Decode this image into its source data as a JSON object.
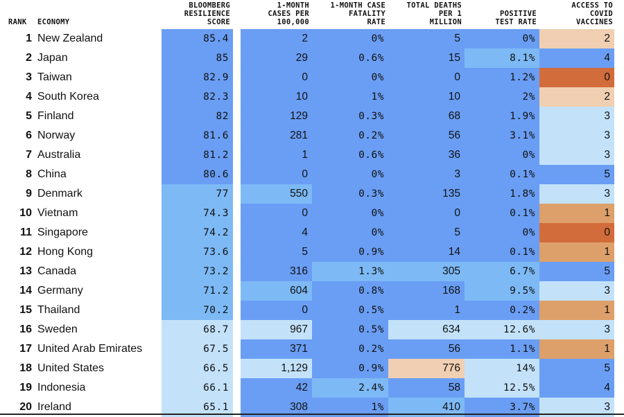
{
  "colors": {
    "blue_dark": "#6a9ef4",
    "blue_mid": "#7db9f5",
    "blue_light": "#c3e2fa",
    "peach_light": "#f0cfb2",
    "orange_mid": "#dea06b",
    "orange_dark": "#d26c3b"
  },
  "header": {
    "rank": "RANK",
    "economy": "ECONOMY",
    "score": "BLOOMBERG\nRESILIENCE\nSCORE",
    "cases": "1-MONTH\nCASES PER\n100,000",
    "cfr": "1-MONTH CASE\nFATALITY\nRATE",
    "deaths": "TOTAL DEATHS\nPER 1\nMILLION",
    "positive": "POSITIVE\nTEST RATE",
    "vaccines": "ACCESS TO\nCOVID\nVACCINES"
  },
  "chart_data": {
    "type": "table",
    "columns": [
      "Rank",
      "Economy",
      "Bloomberg Resilience Score",
      "1-Month Cases Per 100,000",
      "1-Month Case Fatality Rate",
      "Total Deaths Per 1 Million",
      "Positive Test Rate",
      "Access to Covid Vaccines"
    ],
    "rows": [
      {
        "rank": "1",
        "economy": "New Zealand",
        "score": "85.4",
        "cases": "2",
        "cfr": "0%",
        "deaths": "5",
        "positive": "0%",
        "vaccines": "2",
        "colors": {
          "score": "blue_dark",
          "cases": "blue_dark",
          "cfr": "blue_dark",
          "deaths": "blue_dark",
          "positive": "blue_dark",
          "vaccines": "peach_light"
        }
      },
      {
        "rank": "2",
        "economy": "Japan",
        "score": "85",
        "cases": "29",
        "cfr": "0.6%",
        "deaths": "15",
        "positive": "8.1%",
        "vaccines": "4",
        "colors": {
          "score": "blue_dark",
          "cases": "blue_dark",
          "cfr": "blue_dark",
          "deaths": "blue_dark",
          "positive": "blue_mid",
          "vaccines": "blue_dark"
        }
      },
      {
        "rank": "3",
        "economy": "Taiwan",
        "score": "82.9",
        "cases": "0",
        "cfr": "0%",
        "deaths": "0",
        "positive": "1.2%",
        "vaccines": "0",
        "colors": {
          "score": "blue_dark",
          "cases": "blue_dark",
          "cfr": "blue_dark",
          "deaths": "blue_dark",
          "positive": "blue_dark",
          "vaccines": "orange_dark"
        }
      },
      {
        "rank": "4",
        "economy": "South Korea",
        "score": "82.3",
        "cases": "10",
        "cfr": "1%",
        "deaths": "10",
        "positive": "2%",
        "vaccines": "2",
        "colors": {
          "score": "blue_dark",
          "cases": "blue_dark",
          "cfr": "blue_dark",
          "deaths": "blue_dark",
          "positive": "blue_dark",
          "vaccines": "peach_light"
        }
      },
      {
        "rank": "5",
        "economy": "Finland",
        "score": "82",
        "cases": "129",
        "cfr": "0.3%",
        "deaths": "68",
        "positive": "1.9%",
        "vaccines": "3",
        "colors": {
          "score": "blue_dark",
          "cases": "blue_dark",
          "cfr": "blue_dark",
          "deaths": "blue_dark",
          "positive": "blue_dark",
          "vaccines": "blue_light"
        }
      },
      {
        "rank": "6",
        "economy": "Norway",
        "score": "81.6",
        "cases": "281",
        "cfr": "0.2%",
        "deaths": "56",
        "positive": "3.1%",
        "vaccines": "3",
        "colors": {
          "score": "blue_dark",
          "cases": "blue_dark",
          "cfr": "blue_dark",
          "deaths": "blue_dark",
          "positive": "blue_dark",
          "vaccines": "blue_light"
        }
      },
      {
        "rank": "7",
        "economy": "Australia",
        "score": "81.2",
        "cases": "1",
        "cfr": "0.6%",
        "deaths": "36",
        "positive": "0%",
        "vaccines": "3",
        "colors": {
          "score": "blue_dark",
          "cases": "blue_dark",
          "cfr": "blue_dark",
          "deaths": "blue_dark",
          "positive": "blue_dark",
          "vaccines": "blue_light"
        }
      },
      {
        "rank": "8",
        "economy": "China",
        "score": "80.6",
        "cases": "0",
        "cfr": "0%",
        "deaths": "3",
        "positive": "0.1%",
        "vaccines": "5",
        "colors": {
          "score": "blue_dark",
          "cases": "blue_dark",
          "cfr": "blue_dark",
          "deaths": "blue_dark",
          "positive": "blue_dark",
          "vaccines": "blue_dark"
        }
      },
      {
        "rank": "9",
        "economy": "Denmark",
        "score": "77",
        "cases": "550",
        "cfr": "0.3%",
        "deaths": "135",
        "positive": "1.8%",
        "vaccines": "3",
        "colors": {
          "score": "blue_mid",
          "cases": "blue_mid",
          "cfr": "blue_dark",
          "deaths": "blue_dark",
          "positive": "blue_dark",
          "vaccines": "blue_light"
        }
      },
      {
        "rank": "10",
        "economy": "Vietnam",
        "score": "74.3",
        "cases": "0",
        "cfr": "0%",
        "deaths": "0",
        "positive": "0.1%",
        "vaccines": "1",
        "colors": {
          "score": "blue_mid",
          "cases": "blue_dark",
          "cfr": "blue_dark",
          "deaths": "blue_dark",
          "positive": "blue_dark",
          "vaccines": "orange_mid"
        }
      },
      {
        "rank": "11",
        "economy": "Singapore",
        "score": "74.2",
        "cases": "4",
        "cfr": "0%",
        "deaths": "5",
        "positive": "0%",
        "vaccines": "0",
        "colors": {
          "score": "blue_mid",
          "cases": "blue_dark",
          "cfr": "blue_dark",
          "deaths": "blue_dark",
          "positive": "blue_dark",
          "vaccines": "orange_dark"
        }
      },
      {
        "rank": "12",
        "economy": "Hong Kong",
        "score": "73.6",
        "cases": "5",
        "cfr": "0.9%",
        "deaths": "14",
        "positive": "0.1%",
        "vaccines": "1",
        "colors": {
          "score": "blue_mid",
          "cases": "blue_dark",
          "cfr": "blue_dark",
          "deaths": "blue_dark",
          "positive": "blue_dark",
          "vaccines": "orange_mid"
        }
      },
      {
        "rank": "13",
        "economy": "Canada",
        "score": "73.2",
        "cases": "316",
        "cfr": "1.3%",
        "deaths": "305",
        "positive": "6.7%",
        "vaccines": "5",
        "colors": {
          "score": "blue_mid",
          "cases": "blue_dark",
          "cfr": "blue_mid",
          "deaths": "blue_mid",
          "positive": "blue_mid",
          "vaccines": "blue_dark"
        }
      },
      {
        "rank": "14",
        "economy": "Germany",
        "score": "71.2",
        "cases": "604",
        "cfr": "0.8%",
        "deaths": "168",
        "positive": "9.5%",
        "vaccines": "3",
        "colors": {
          "score": "blue_mid",
          "cases": "blue_mid",
          "cfr": "blue_dark",
          "deaths": "blue_dark",
          "positive": "blue_mid",
          "vaccines": "blue_light"
        }
      },
      {
        "rank": "15",
        "economy": "Thailand",
        "score": "70.2",
        "cases": "0",
        "cfr": "0.5%",
        "deaths": "1",
        "positive": "0.2%",
        "vaccines": "1",
        "colors": {
          "score": "blue_mid",
          "cases": "blue_dark",
          "cfr": "blue_dark",
          "deaths": "blue_dark",
          "positive": "blue_dark",
          "vaccines": "orange_mid"
        }
      },
      {
        "rank": "16",
        "economy": "Sweden",
        "score": "68.7",
        "cases": "967",
        "cfr": "0.5%",
        "deaths": "634",
        "positive": "12.6%",
        "vaccines": "3",
        "colors": {
          "score": "blue_light",
          "cases": "blue_light",
          "cfr": "blue_dark",
          "deaths": "blue_light",
          "positive": "blue_light",
          "vaccines": "blue_light"
        }
      },
      {
        "rank": "17",
        "economy": "United Arab Emirates",
        "score": "67.5",
        "cases": "371",
        "cfr": "0.2%",
        "deaths": "56",
        "positive": "1.1%",
        "vaccines": "1",
        "colors": {
          "score": "blue_light",
          "cases": "blue_dark",
          "cfr": "blue_dark",
          "deaths": "blue_dark",
          "positive": "blue_dark",
          "vaccines": "orange_mid"
        }
      },
      {
        "rank": "18",
        "economy": "United States",
        "score": "66.5",
        "cases": "1,129",
        "cfr": "0.9%",
        "deaths": "776",
        "positive": "14%",
        "vaccines": "5",
        "colors": {
          "score": "blue_light",
          "cases": "blue_light",
          "cfr": "blue_dark",
          "deaths": "peach_light",
          "positive": "blue_light",
          "vaccines": "blue_dark"
        }
      },
      {
        "rank": "19",
        "economy": "Indonesia",
        "score": "66.1",
        "cases": "42",
        "cfr": "2.4%",
        "deaths": "58",
        "positive": "12.5%",
        "vaccines": "4",
        "colors": {
          "score": "blue_light",
          "cases": "blue_dark",
          "cfr": "blue_mid",
          "deaths": "blue_dark",
          "positive": "blue_light",
          "vaccines": "blue_dark"
        }
      },
      {
        "rank": "20",
        "economy": "Ireland",
        "score": "65.1",
        "cases": "308",
        "cfr": "1%",
        "deaths": "410",
        "positive": "3.7%",
        "vaccines": "3",
        "colors": {
          "score": "blue_light",
          "cases": "blue_dark",
          "cfr": "blue_dark",
          "deaths": "blue_mid",
          "positive": "blue_dark",
          "vaccines": "blue_light"
        }
      }
    ]
  }
}
